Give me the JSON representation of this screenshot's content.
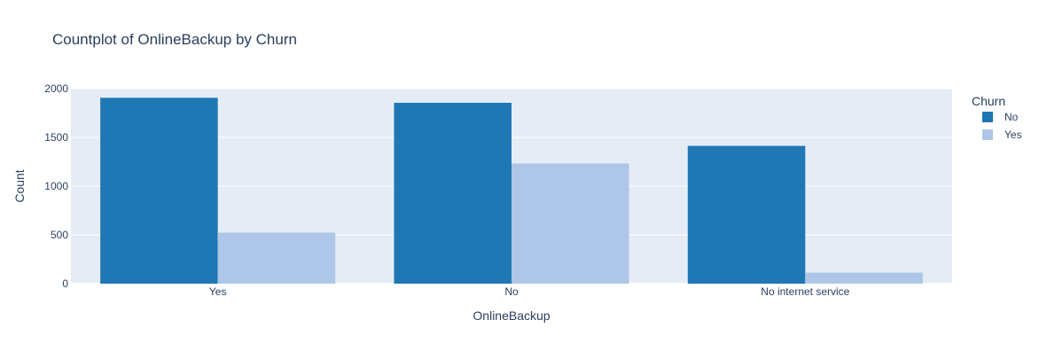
{
  "chart_data": {
    "type": "bar",
    "title": "Countplot of OnlineBackup by Churn",
    "xlabel": "OnlineBackup",
    "ylabel": "Count",
    "categories": [
      "Yes",
      "No",
      "No internet service"
    ],
    "series": [
      {
        "name": "No",
        "values": [
          1906,
          1855,
          1413
        ],
        "color": "#1f77b4"
      },
      {
        "name": "Yes",
        "values": [
          523,
          1233,
          113
        ],
        "color": "#aec7e8"
      }
    ],
    "ylim": [
      0,
      2000
    ],
    "yticks": [
      0,
      500,
      1000,
      1500,
      2000
    ],
    "legend": {
      "title": "Churn",
      "placement": "right"
    },
    "grid": true,
    "plot_bgcolor": "#e5ecf6"
  }
}
